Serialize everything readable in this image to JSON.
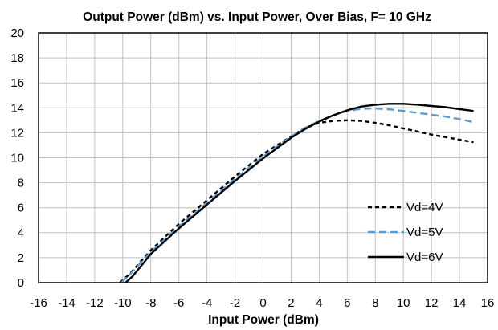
{
  "chart_data": {
    "type": "line",
    "title": "Output Power (dBm) vs. Input Power, Over Bias, F= 10 GHz",
    "xlabel": "Input Power (dBm)",
    "ylabel": "",
    "xlim": [
      -16,
      16
    ],
    "ylim": [
      0,
      20
    ],
    "xticks": [
      -16,
      -14,
      -12,
      -10,
      -8,
      -6,
      -4,
      -2,
      0,
      2,
      4,
      6,
      8,
      10,
      12,
      14,
      16
    ],
    "yticks": [
      0,
      2,
      4,
      6,
      8,
      10,
      12,
      14,
      16,
      18,
      20
    ],
    "grid": true,
    "legend_position": "bottom-right",
    "series": [
      {
        "name": "Vd=4V",
        "color": "#000000",
        "dash": "dashed",
        "points": [
          [
            -10.2,
            0
          ],
          [
            -9.5,
            0.7
          ],
          [
            -8,
            2.6
          ],
          [
            -6,
            4.7
          ],
          [
            -4,
            6.6
          ],
          [
            -2,
            8.5
          ],
          [
            0,
            10.3
          ],
          [
            2,
            11.7
          ],
          [
            3,
            12.4
          ],
          [
            4,
            12.8
          ],
          [
            5,
            12.95
          ],
          [
            6,
            13.0
          ],
          [
            7,
            12.95
          ],
          [
            8,
            12.8
          ],
          [
            9,
            12.6
          ],
          [
            10,
            12.35
          ],
          [
            11,
            12.1
          ],
          [
            12,
            11.85
          ],
          [
            13,
            11.65
          ],
          [
            14,
            11.45
          ],
          [
            15,
            11.25
          ]
        ]
      },
      {
        "name": "Vd=5V",
        "color": "#5b9bd5",
        "dash": "dashed",
        "points": [
          [
            -10.1,
            0
          ],
          [
            -9.5,
            0.65
          ],
          [
            -8,
            2.45
          ],
          [
            -6,
            4.5
          ],
          [
            -4,
            6.4
          ],
          [
            -2,
            8.3
          ],
          [
            0,
            10.1
          ],
          [
            2,
            11.7
          ],
          [
            3,
            12.4
          ],
          [
            4,
            12.95
          ],
          [
            5,
            13.4
          ],
          [
            6,
            13.75
          ],
          [
            7,
            13.92
          ],
          [
            8,
            13.95
          ],
          [
            9,
            13.88
          ],
          [
            10,
            13.75
          ],
          [
            11,
            13.6
          ],
          [
            12,
            13.45
          ],
          [
            13,
            13.3
          ],
          [
            14,
            13.1
          ],
          [
            15,
            12.85
          ]
        ]
      },
      {
        "name": "Vd=6V",
        "color": "#000000",
        "dash": "solid",
        "points": [
          [
            -9.8,
            0
          ],
          [
            -9.3,
            0.5
          ],
          [
            -8,
            2.3
          ],
          [
            -6,
            4.35
          ],
          [
            -4,
            6.25
          ],
          [
            -2,
            8.15
          ],
          [
            0,
            9.95
          ],
          [
            2,
            11.6
          ],
          [
            3,
            12.3
          ],
          [
            4,
            12.9
          ],
          [
            5,
            13.4
          ],
          [
            6,
            13.8
          ],
          [
            7,
            14.1
          ],
          [
            8,
            14.25
          ],
          [
            9,
            14.32
          ],
          [
            10,
            14.32
          ],
          [
            11,
            14.25
          ],
          [
            12,
            14.15
          ],
          [
            13,
            14.05
          ],
          [
            14,
            13.9
          ],
          [
            15,
            13.75
          ]
        ]
      }
    ]
  }
}
